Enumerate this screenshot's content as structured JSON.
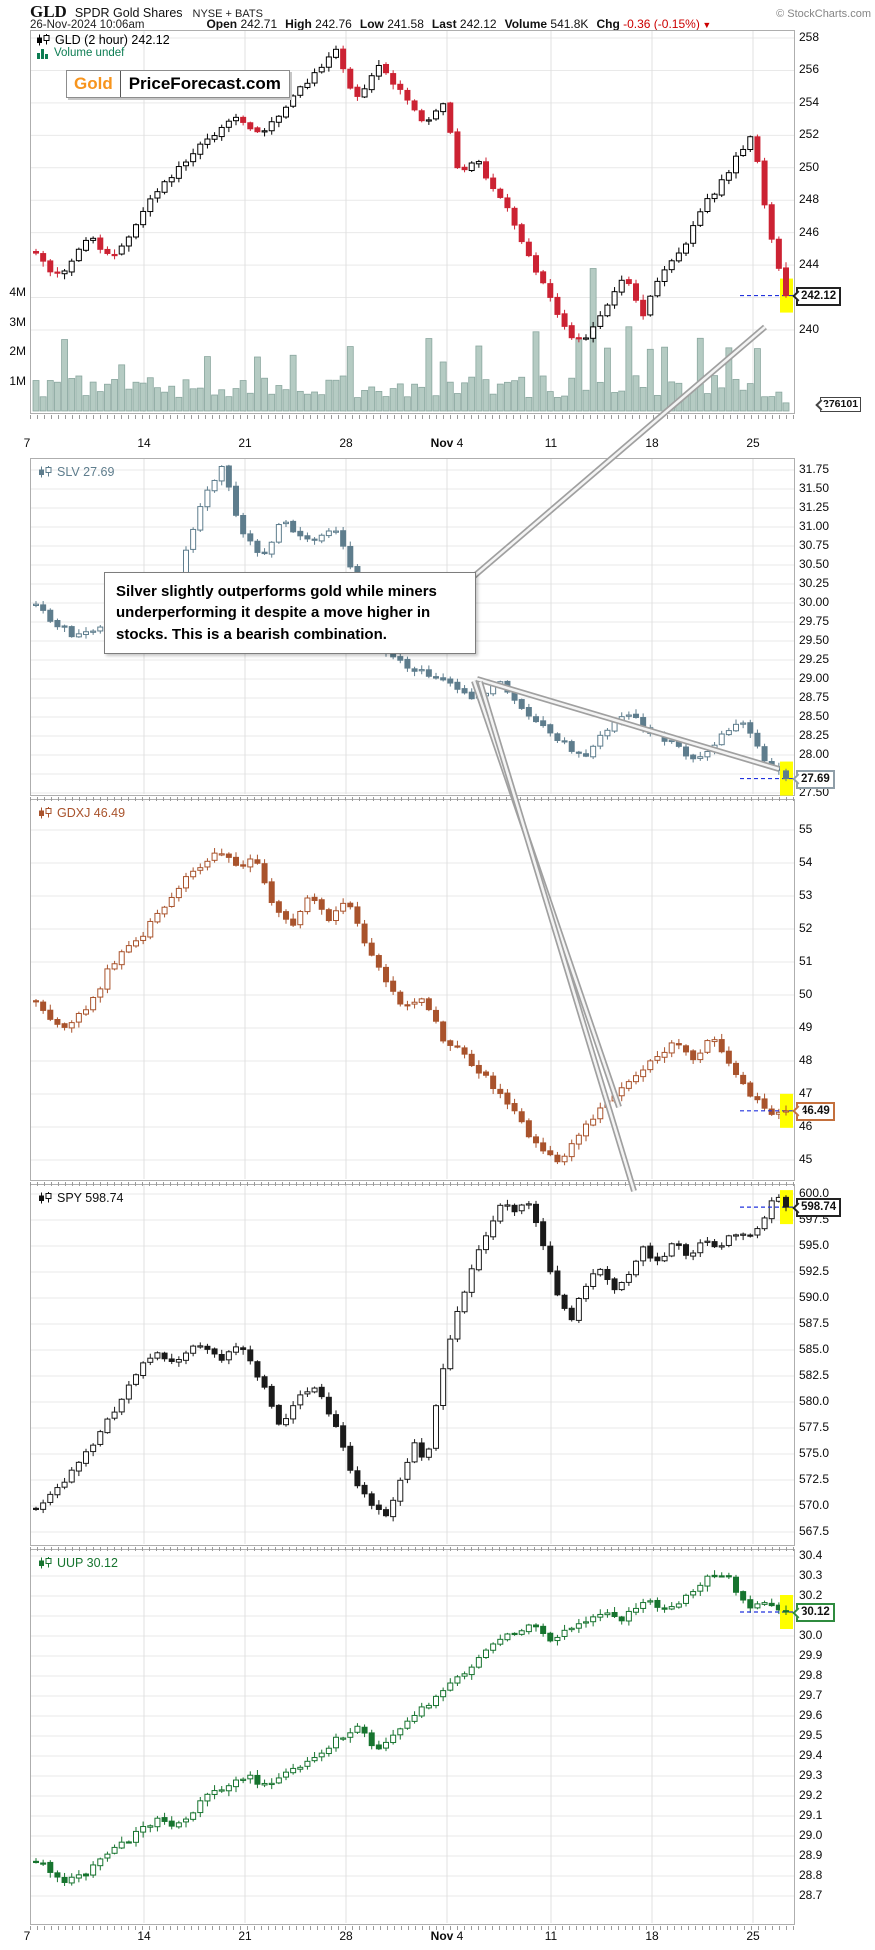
{
  "header": {
    "symbol": "GLD",
    "name": "SPDR Gold Shares",
    "exchange": "NYSE + BATS",
    "copyright": "© StockCharts.com",
    "datetime": "26-Nov-2024 10:06am",
    "quote": {
      "pairs": [
        {
          "label": "Open",
          "value": "242.71"
        },
        {
          "label": "High",
          "value": "242.76"
        },
        {
          "label": "Low",
          "value": "241.58"
        },
        {
          "label": "Last",
          "value": "242.12"
        },
        {
          "label": "Volume",
          "value": "541.8K"
        },
        {
          "label": "Chg",
          "value": "-0.36 (-0.15%)",
          "color": "#cc0000",
          "arrow": "▼"
        }
      ]
    }
  },
  "logo": {
    "gold": "Gold",
    "rest": "PriceForecast.com",
    "gold_color": "#f7941d"
  },
  "annotation": {
    "text": "Silver slightly outperforms gold while miners underperforming it despite a move higher in stocks. This is a bearish combination."
  },
  "x_axis": {
    "labels": [
      "7",
      "14",
      "21",
      "28",
      "Nov 4",
      "11",
      "18",
      "25"
    ],
    "range": [
      "Oct 7 2024",
      "Nov 26 2024"
    ]
  },
  "colors": {
    "grid": "#e9e9e9",
    "vgrid": "#e0e0e0",
    "dashed_line": "#2233dd",
    "highlight": "#ffff00",
    "arrow": "#a0a0a0",
    "volume_fill": "#b5cbc3",
    "volume_stroke": "#8aa79f",
    "chg_negative": "#cc0000"
  },
  "chart_data": [
    {
      "type": "candlestick",
      "symbol": "GLD",
      "timeframe": "2 hour",
      "legend": "GLD (2 hour) 242.12",
      "last": 242.12,
      "callout": "242.12",
      "callout_color": "#222222",
      "icon_color": "#000000",
      "ylim": [
        234.9,
        258.5
      ],
      "yticks": [
        258,
        256,
        254,
        252,
        250,
        248,
        246,
        244,
        242,
        240
      ],
      "colors": {
        "up": "#ffffff",
        "down": "#cc2233",
        "outline": "#000000"
      },
      "close_path": [
        [
          0,
          244.6
        ],
        [
          0.03,
          243.3
        ],
        [
          0.07,
          245.9
        ],
        [
          0.1,
          244.3
        ],
        [
          0.16,
          248.4
        ],
        [
          0.21,
          250.9
        ],
        [
          0.26,
          253.1
        ],
        [
          0.3,
          252.1
        ],
        [
          0.36,
          255.2
        ],
        [
          0.4,
          257.4
        ],
        [
          0.425,
          254.3
        ],
        [
          0.46,
          256.3
        ],
        [
          0.52,
          252.7
        ],
        [
          0.545,
          253.9
        ],
        [
          0.565,
          249.5
        ],
        [
          0.585,
          250.7
        ],
        [
          0.63,
          247.3
        ],
        [
          0.655,
          244.9
        ],
        [
          0.685,
          241.9
        ],
        [
          0.715,
          239.6
        ],
        [
          0.73,
          239.3
        ],
        [
          0.76,
          241.4
        ],
        [
          0.785,
          243.2
        ],
        [
          0.81,
          240.9
        ],
        [
          0.835,
          243.7
        ],
        [
          0.865,
          245.3
        ],
        [
          0.895,
          247.9
        ],
        [
          0.925,
          249.9
        ],
        [
          0.955,
          252.2
        ],
        [
          0.975,
          246.8
        ],
        [
          1,
          242.12
        ]
      ],
      "volume": {
        "legend": "Volume undef",
        "legend_color": "#0c7c52",
        "axis_labels": [
          "4M",
          "3M",
          "2M",
          "1M"
        ],
        "axis_values_m": [
          4,
          3,
          2,
          1
        ],
        "last": "276101",
        "typical_m": 0.9,
        "max_m": 5.0
      }
    },
    {
      "type": "candlestick",
      "symbol": "SLV",
      "legend": "SLV 27.69",
      "last": 27.69,
      "callout": "27.69",
      "callout_color": "#8f9ea8",
      "icon_color": "#5e7d8d",
      "ylim": [
        27.47,
        31.91
      ],
      "yticks": [
        31.75,
        31.5,
        31.25,
        31.0,
        30.75,
        30.5,
        30.25,
        30.0,
        29.75,
        29.5,
        29.25,
        29.0,
        28.75,
        28.5,
        28.25,
        28.0,
        27.75,
        27.5
      ],
      "colors": {
        "up": "#ffffff",
        "down": "#5e7d8d",
        "outline": "#5e7d8d"
      },
      "close_path": [
        [
          0,
          29.95
        ],
        [
          0.05,
          29.55
        ],
        [
          0.1,
          29.75
        ],
        [
          0.15,
          30.0
        ],
        [
          0.19,
          30.35
        ],
        [
          0.22,
          31.3
        ],
        [
          0.25,
          31.85
        ],
        [
          0.27,
          31.0
        ],
        [
          0.3,
          30.6
        ],
        [
          0.33,
          31.1
        ],
        [
          0.36,
          30.8
        ],
        [
          0.4,
          30.95
        ],
        [
          0.44,
          30.0
        ],
        [
          0.47,
          29.3
        ],
        [
          0.5,
          29.15
        ],
        [
          0.54,
          29.0
        ],
        [
          0.58,
          28.75
        ],
        [
          0.62,
          28.95
        ],
        [
          0.66,
          28.45
        ],
        [
          0.7,
          28.2
        ],
        [
          0.73,
          27.95
        ],
        [
          0.76,
          28.35
        ],
        [
          0.79,
          28.55
        ],
        [
          0.82,
          28.3
        ],
        [
          0.85,
          28.15
        ],
        [
          0.88,
          27.9
        ],
        [
          0.91,
          28.2
        ],
        [
          0.94,
          28.5
        ],
        [
          0.97,
          27.95
        ],
        [
          1,
          27.69
        ]
      ]
    },
    {
      "type": "candlestick",
      "symbol": "GDXJ",
      "legend": "GDXJ 46.49",
      "last": 46.49,
      "callout": "46.49",
      "callout_color": "#c4703d",
      "icon_color": "#a9532c",
      "ylim": [
        44.4,
        55.9
      ],
      "yticks": [
        55,
        54,
        53,
        52,
        51,
        50,
        49,
        48,
        47,
        46,
        45
      ],
      "colors": {
        "up": "#ffffff",
        "down": "#a9532c",
        "outline": "#a9532c"
      },
      "close_path": [
        [
          0,
          49.8
        ],
        [
          0.035,
          48.9
        ],
        [
          0.07,
          49.6
        ],
        [
          0.1,
          50.9
        ],
        [
          0.14,
          51.8
        ],
        [
          0.17,
          52.6
        ],
        [
          0.2,
          53.6
        ],
        [
          0.245,
          54.4
        ],
        [
          0.27,
          53.8
        ],
        [
          0.29,
          54.2
        ],
        [
          0.315,
          52.8
        ],
        [
          0.34,
          52.0
        ],
        [
          0.365,
          53.0
        ],
        [
          0.39,
          52.3
        ],
        [
          0.415,
          52.8
        ],
        [
          0.44,
          51.5
        ],
        [
          0.465,
          50.4
        ],
        [
          0.49,
          49.6
        ],
        [
          0.515,
          49.9
        ],
        [
          0.545,
          48.6
        ],
        [
          0.57,
          48.2
        ],
        [
          0.6,
          47.5
        ],
        [
          0.63,
          46.7
        ],
        [
          0.655,
          45.8
        ],
        [
          0.68,
          45.2
        ],
        [
          0.7,
          44.9
        ],
        [
          0.72,
          45.7
        ],
        [
          0.745,
          46.3
        ],
        [
          0.77,
          46.9
        ],
        [
          0.8,
          47.5
        ],
        [
          0.83,
          48.2
        ],
        [
          0.855,
          48.6
        ],
        [
          0.88,
          48.0
        ],
        [
          0.9,
          48.8
        ],
        [
          0.92,
          48.1
        ],
        [
          0.94,
          47.3
        ],
        [
          0.96,
          46.8
        ],
        [
          0.985,
          46.3
        ],
        [
          1,
          46.49
        ]
      ]
    },
    {
      "type": "candlestick",
      "symbol": "SPY",
      "legend": "SPY 598.74",
      "last": 598.74,
      "callout": "598.74",
      "callout_color": "#222222",
      "icon_color": "#111111",
      "ylim": [
        566.2,
        601.0
      ],
      "yticks": [
        600.0,
        597.5,
        595.0,
        592.5,
        590.0,
        587.5,
        585.0,
        582.5,
        580.0,
        577.5,
        575.0,
        572.5,
        570.0,
        567.5
      ],
      "colors": {
        "up": "#ffffff",
        "down": "#1a1a1a",
        "outline": "#1a1a1a"
      },
      "close_path": [
        [
          0,
          569.5
        ],
        [
          0.04,
          572.5
        ],
        [
          0.08,
          576.5
        ],
        [
          0.12,
          581.0
        ],
        [
          0.155,
          584.8
        ],
        [
          0.185,
          583.5
        ],
        [
          0.215,
          585.5
        ],
        [
          0.245,
          584.0
        ],
        [
          0.275,
          585.5
        ],
        [
          0.3,
          582.0
        ],
        [
          0.325,
          577.8
        ],
        [
          0.35,
          580.5
        ],
        [
          0.375,
          581.3
        ],
        [
          0.4,
          577.5
        ],
        [
          0.425,
          572.5
        ],
        [
          0.45,
          569.8
        ],
        [
          0.47,
          569.2
        ],
        [
          0.49,
          573.0
        ],
        [
          0.505,
          576.0
        ],
        [
          0.52,
          574.3
        ],
        [
          0.545,
          584.0
        ],
        [
          0.565,
          589.5
        ],
        [
          0.585,
          593.5
        ],
        [
          0.605,
          597.0
        ],
        [
          0.625,
          599.3
        ],
        [
          0.64,
          598.2
        ],
        [
          0.655,
          599.5
        ],
        [
          0.67,
          597.0
        ],
        [
          0.685,
          592.5
        ],
        [
          0.7,
          589.3
        ],
        [
          0.715,
          587.9
        ],
        [
          0.73,
          591.0
        ],
        [
          0.75,
          593.2
        ],
        [
          0.77,
          590.4
        ],
        [
          0.79,
          592.5
        ],
        [
          0.81,
          594.8
        ],
        [
          0.83,
          593.3
        ],
        [
          0.85,
          595.6
        ],
        [
          0.87,
          594.0
        ],
        [
          0.89,
          595.8
        ],
        [
          0.91,
          594.5
        ],
        [
          0.93,
          596.5
        ],
        [
          0.95,
          595.5
        ],
        [
          0.97,
          597.8
        ],
        [
          0.985,
          599.8
        ],
        [
          1,
          598.74
        ]
      ]
    },
    {
      "type": "candlestick",
      "symbol": "UUP",
      "legend": "UUP 30.12",
      "last": 30.12,
      "callout": "30.12",
      "callout_color": "#2f8b3f",
      "icon_color": "#17742f",
      "ylim": [
        28.56,
        30.43
      ],
      "yticks": [
        30.4,
        30.3,
        30.2,
        30.1,
        30.0,
        29.9,
        29.8,
        29.7,
        29.6,
        29.5,
        29.4,
        29.3,
        29.2,
        29.1,
        29.0,
        28.9,
        28.8,
        28.7
      ],
      "colors": {
        "up": "#ffffff",
        "down": "#17742f",
        "outline": "#17742f"
      },
      "close_path": [
        [
          0,
          28.88
        ],
        [
          0.035,
          28.76
        ],
        [
          0.07,
          28.82
        ],
        [
          0.1,
          28.92
        ],
        [
          0.13,
          29.0
        ],
        [
          0.16,
          29.08
        ],
        [
          0.19,
          29.05
        ],
        [
          0.22,
          29.17
        ],
        [
          0.25,
          29.25
        ],
        [
          0.28,
          29.3
        ],
        [
          0.31,
          29.25
        ],
        [
          0.34,
          29.32
        ],
        [
          0.37,
          29.38
        ],
        [
          0.4,
          29.48
        ],
        [
          0.43,
          29.55
        ],
        [
          0.455,
          29.42
        ],
        [
          0.48,
          29.5
        ],
        [
          0.51,
          29.62
        ],
        [
          0.54,
          29.72
        ],
        [
          0.57,
          29.82
        ],
        [
          0.6,
          29.92
        ],
        [
          0.63,
          30.0
        ],
        [
          0.66,
          30.05
        ],
        [
          0.69,
          29.98
        ],
        [
          0.72,
          30.05
        ],
        [
          0.75,
          30.12
        ],
        [
          0.78,
          30.08
        ],
        [
          0.81,
          30.18
        ],
        [
          0.84,
          30.12
        ],
        [
          0.87,
          30.2
        ],
        [
          0.9,
          30.32
        ],
        [
          0.925,
          30.28
        ],
        [
          0.95,
          30.12
        ],
        [
          0.975,
          30.18
        ],
        [
          1,
          30.12
        ]
      ]
    }
  ]
}
